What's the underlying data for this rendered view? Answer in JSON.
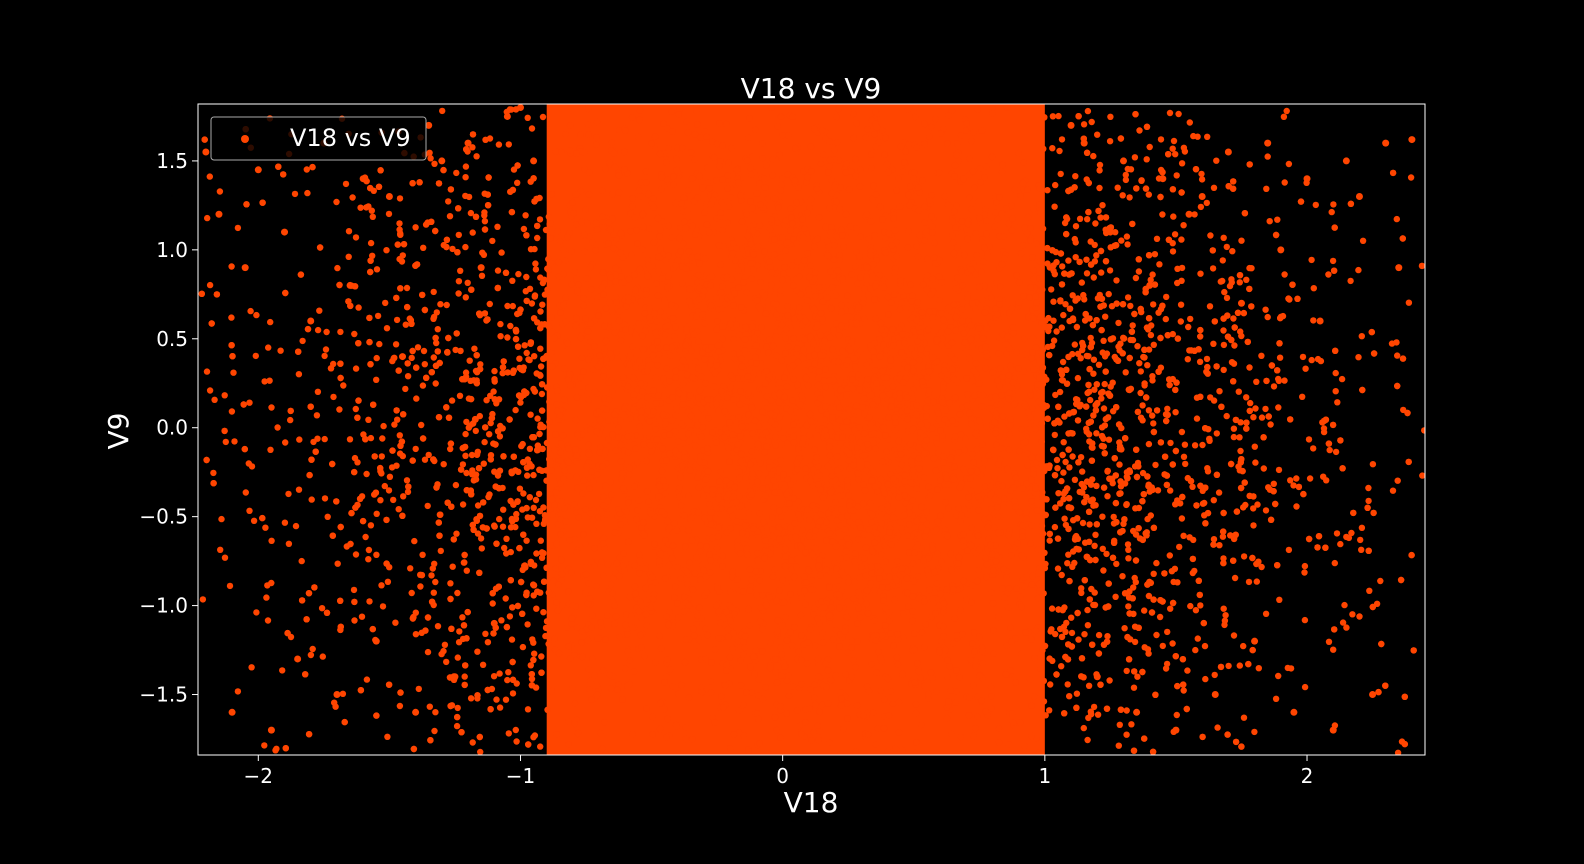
{
  "chart_data": {
    "type": "scatter",
    "title": "V18 vs V9",
    "xlabel": "V18",
    "ylabel": "V9",
    "xlim": [
      -2.23,
      2.45
    ],
    "ylim": [
      -1.84,
      1.82
    ],
    "x_ticks": [
      -2,
      -1,
      0,
      1,
      2
    ],
    "y_ticks": [
      -1.5,
      -1.0,
      -0.5,
      0.0,
      0.5,
      1.0,
      1.5
    ],
    "x_tick_labels": [
      "−2",
      "−1",
      "0",
      "1",
      "2"
    ],
    "y_tick_labels": [
      "−1.5",
      "−1.0",
      "−0.5",
      "0.0",
      "0.5",
      "1.0",
      "1.5"
    ],
    "series": [
      {
        "name": "V18 vs V9",
        "color": "#ff4500",
        "density_core": {
          "x_range": [
            -0.9,
            1.0
          ],
          "y_range": [
            -1.84,
            1.82
          ]
        },
        "x": [
          -2.2,
          -2.15,
          -2.1,
          -2.05,
          -2.0,
          -1.95,
          -1.9,
          -1.85,
          -1.8,
          -1.75,
          -1.7,
          -1.65,
          -1.6,
          -1.55,
          -1.5,
          -1.45,
          -1.4,
          -1.35,
          -1.3,
          -1.25,
          -1.2,
          -1.15,
          -1.1,
          -1.05,
          -1.0,
          -0.95,
          1.1,
          1.15,
          1.2,
          1.25,
          1.3,
          1.35,
          1.4,
          1.45,
          1.5,
          1.55,
          1.6,
          1.65,
          1.7,
          1.75,
          1.8,
          1.85,
          1.9,
          1.95,
          2.0,
          2.05,
          2.1,
          2.15,
          2.2,
          2.25,
          2.3,
          2.35,
          2.4
        ],
        "y": [
          1.55,
          1.2,
          -1.6,
          0.9,
          1.45,
          -1.7,
          1.1,
          -1.3,
          0.6,
          1.6,
          -1.5,
          0.8,
          1.4,
          -1.2,
          1.3,
          0.4,
          -1.6,
          1.7,
          1.5,
          -1.4,
          1.6,
          0.9,
          -1.1,
          1.75,
          1.8,
          1.5,
          1.7,
          1.6,
          -1.4,
          1.1,
          1.5,
          -1.6,
          0.8,
          1.4,
          -1.7,
          1.2,
          1.3,
          -1.5,
          1.55,
          0.7,
          -1.2,
          1.6,
          1.0,
          -1.6,
          1.4,
          0.6,
          -1.7,
          1.5,
          1.3,
          -1.5,
          1.6,
          0.9,
          1.62
        ]
      }
    ],
    "grid": false,
    "legend_position": "top-left",
    "background": "#000000",
    "foreground": "#ffffff"
  }
}
